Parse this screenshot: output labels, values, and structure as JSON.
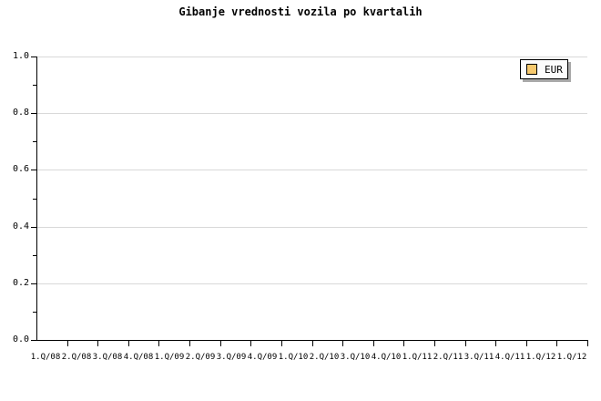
{
  "title": "Gibanje vrednosti vozila po kvartalih",
  "legend": {
    "label": "EUR",
    "swatch_color": "#F7C96E",
    "background": "#FCFCFC",
    "shadow_color": "#A9A9A9",
    "position": "top-right"
  },
  "colors": {
    "background": "#FFFFFF",
    "axis": "#000000",
    "gridline": "#D9D9D9",
    "text": "#000000"
  },
  "chart_data": {
    "type": "line",
    "title": "Gibanje vrednosti vozila po kvartalih",
    "xlabel": "",
    "ylabel": "",
    "x_categories": [
      "1.Q/08",
      "2.Q/08",
      "3.Q/08",
      "4.Q/08",
      "1.Q/09",
      "2.Q/09",
      "3.Q/09",
      "4.Q/09",
      "1.Q/10",
      "2.Q/10",
      "3.Q/10",
      "4.Q/10",
      "1.Q/11",
      "2.Q/11",
      "3.Q/11",
      "4.Q/11",
      "1.Q/12",
      "1.Q/12"
    ],
    "y_tick_labels": [
      "0.0",
      "0.2",
      "0.4",
      "0.6",
      "0.8",
      "1.0"
    ],
    "ylim": [
      0.0,
      1.0
    ],
    "y_major_step": 0.2,
    "y_minor_step": 0.1,
    "grid": "horizontal-major",
    "legend_position": "top-right",
    "series": [
      {
        "name": "EUR",
        "color": "#F7C96E",
        "values": []
      }
    ]
  }
}
